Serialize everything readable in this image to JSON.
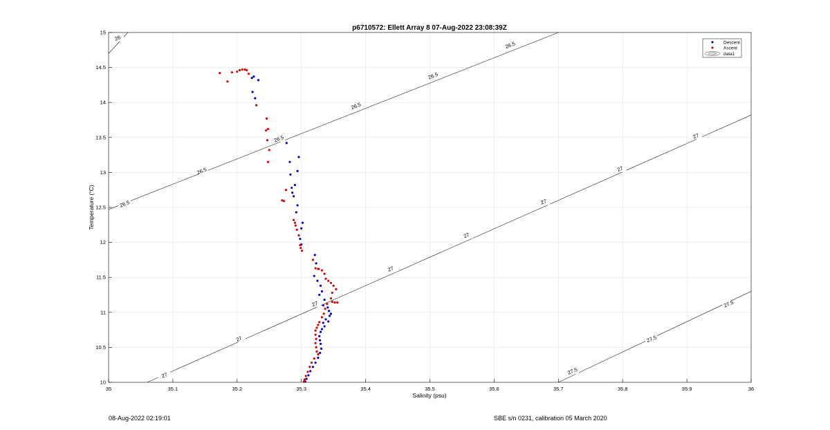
{
  "chart_data": {
    "type": "scatter",
    "title": "p6710572: Ellett Array 8 07-Aug-2022 23:08:39Z",
    "xlabel": "Salinity (psu)",
    "ylabel": "Temperature (°C)",
    "xlim": [
      35,
      36
    ],
    "ylim": [
      10,
      15
    ],
    "xticks": [
      "35",
      "35.1",
      "35.2",
      "35.3",
      "35.4",
      "35.5",
      "35.6",
      "35.7",
      "35.8",
      "35.9",
      "36"
    ],
    "yticks": [
      "10",
      "10.5",
      "11",
      "11.5",
      "12",
      "12.5",
      "13",
      "13.5",
      "14",
      "14.5",
      "15"
    ],
    "grid": true,
    "legend_position": "top-right",
    "legend": [
      "Descent",
      "Ascent",
      "data1"
    ],
    "series": [
      {
        "name": "Descent",
        "color": "#0000cc",
        "points": [
          [
            35.226,
            14.37
          ],
          [
            35.223,
            14.35
          ],
          [
            35.233,
            14.32
          ],
          [
            35.224,
            14.15
          ],
          [
            35.228,
            14.06
          ],
          [
            35.277,
            13.42
          ],
          [
            35.296,
            13.22
          ],
          [
            35.282,
            13.15
          ],
          [
            35.294,
            13.02
          ],
          [
            35.283,
            12.97
          ],
          [
            35.29,
            12.82
          ],
          [
            35.285,
            12.78
          ],
          [
            35.286,
            12.71
          ],
          [
            35.288,
            12.66
          ],
          [
            35.294,
            12.53
          ],
          [
            35.292,
            12.43
          ],
          [
            35.302,
            12.28
          ],
          [
            35.3,
            12.2
          ],
          [
            35.298,
            12.05
          ],
          [
            35.3,
            11.97
          ],
          [
            35.321,
            11.82
          ],
          [
            35.323,
            11.7
          ],
          [
            35.327,
            11.62
          ],
          [
            35.32,
            11.52
          ],
          [
            35.325,
            11.45
          ],
          [
            35.33,
            11.38
          ],
          [
            35.332,
            11.3
          ],
          [
            35.328,
            11.25
          ],
          [
            35.336,
            11.18
          ],
          [
            35.334,
            11.1
          ],
          [
            35.341,
            11.07
          ],
          [
            35.343,
            11.02
          ],
          [
            35.346,
            10.98
          ],
          [
            35.344,
            10.95
          ],
          [
            35.338,
            10.9
          ],
          [
            35.342,
            10.87
          ],
          [
            35.334,
            10.85
          ],
          [
            35.336,
            10.8
          ],
          [
            35.332,
            10.76
          ],
          [
            35.33,
            10.72
          ],
          [
            35.328,
            10.66
          ],
          [
            35.329,
            10.6
          ],
          [
            35.33,
            10.55
          ],
          [
            35.331,
            10.48
          ],
          [
            35.329,
            10.42
          ],
          [
            35.326,
            10.35
          ],
          [
            35.322,
            10.28
          ],
          [
            35.318,
            10.22
          ],
          [
            35.314,
            10.16
          ],
          [
            35.311,
            10.1
          ],
          [
            35.308,
            10.05
          ],
          [
            35.306,
            10.01
          ]
        ]
      },
      {
        "name": "Ascent",
        "color": "#dd0000",
        "points": [
          [
            35.173,
            14.42
          ],
          [
            35.185,
            14.3
          ],
          [
            35.192,
            14.43
          ],
          [
            35.2,
            14.44
          ],
          [
            35.204,
            14.46
          ],
          [
            35.208,
            14.47
          ],
          [
            35.212,
            14.47
          ],
          [
            35.215,
            14.46
          ],
          [
            35.218,
            14.41
          ],
          [
            35.23,
            13.96
          ],
          [
            35.246,
            13.77
          ],
          [
            35.248,
            13.62
          ],
          [
            35.245,
            13.6
          ],
          [
            35.247,
            13.46
          ],
          [
            35.25,
            13.32
          ],
          [
            35.248,
            13.15
          ],
          [
            35.276,
            12.75
          ],
          [
            35.27,
            12.6
          ],
          [
            35.273,
            12.59
          ],
          [
            35.288,
            12.32
          ],
          [
            35.29,
            12.28
          ],
          [
            35.291,
            12.24
          ],
          [
            35.293,
            12.18
          ],
          [
            35.296,
            12.1
          ],
          [
            35.298,
            11.96
          ],
          [
            35.299,
            11.92
          ],
          [
            35.301,
            11.88
          ],
          [
            35.318,
            11.75
          ],
          [
            35.322,
            11.63
          ],
          [
            35.326,
            11.62
          ],
          [
            35.332,
            11.6
          ],
          [
            35.336,
            11.55
          ],
          [
            35.338,
            11.48
          ],
          [
            35.342,
            11.45
          ],
          [
            35.346,
            11.42
          ],
          [
            35.35,
            11.38
          ],
          [
            35.354,
            11.33
          ],
          [
            35.348,
            11.28
          ],
          [
            35.346,
            11.2
          ],
          [
            35.348,
            11.15
          ],
          [
            35.352,
            11.14
          ],
          [
            35.356,
            11.14
          ],
          [
            35.34,
            11.12
          ],
          [
            35.337,
            11.05
          ],
          [
            35.335,
            10.98
          ],
          [
            35.332,
            10.93
          ],
          [
            35.328,
            10.86
          ],
          [
            35.326,
            10.82
          ],
          [
            35.324,
            10.78
          ],
          [
            35.322,
            10.74
          ],
          [
            35.322,
            10.68
          ],
          [
            35.323,
            10.62
          ],
          [
            35.322,
            10.56
          ],
          [
            35.323,
            10.5
          ],
          [
            35.324,
            10.44
          ],
          [
            35.326,
            10.4
          ],
          [
            35.32,
            10.34
          ],
          [
            35.316,
            10.28
          ],
          [
            35.313,
            10.22
          ],
          [
            35.31,
            10.15
          ],
          [
            35.307,
            10.09
          ],
          [
            35.305,
            10.04
          ],
          [
            35.304,
            10.01
          ]
        ]
      }
    ],
    "contour_labels": [
      {
        "text": "26",
        "x": 35.014,
        "y": 14.92
      },
      {
        "text": "26.5",
        "x": 35.025,
        "y": 12.55
      },
      {
        "text": "26.5",
        "x": 35.145,
        "y": 13.02
      },
      {
        "text": "26.5",
        "x": 35.265,
        "y": 13.48
      },
      {
        "text": "26.5",
        "x": 35.385,
        "y": 13.95
      },
      {
        "text": "26.5",
        "x": 35.505,
        "y": 14.38
      },
      {
        "text": "26.5",
        "x": 35.625,
        "y": 14.82
      },
      {
        "text": "27",
        "x": 35.087,
        "y": 10.1
      },
      {
        "text": "27",
        "x": 35.203,
        "y": 10.62
      },
      {
        "text": "27",
        "x": 35.321,
        "y": 11.12
      },
      {
        "text": "27",
        "x": 35.439,
        "y": 11.62
      },
      {
        "text": "27",
        "x": 35.557,
        "y": 12.1
      },
      {
        "text": "27",
        "x": 35.677,
        "y": 12.58
      },
      {
        "text": "27",
        "x": 35.796,
        "y": 13.05
      },
      {
        "text": "27",
        "x": 35.914,
        "y": 13.52
      },
      {
        "text": "27.5",
        "x": 35.722,
        "y": 10.16
      },
      {
        "text": "27.5",
        "x": 35.845,
        "y": 10.62
      },
      {
        "text": "27.5",
        "x": 35.965,
        "y": 11.12
      }
    ]
  },
  "footer": {
    "left": "08-Aug-2022 02:19:01",
    "right": "SBE s/n 0231, calibration 05 March 2020"
  }
}
